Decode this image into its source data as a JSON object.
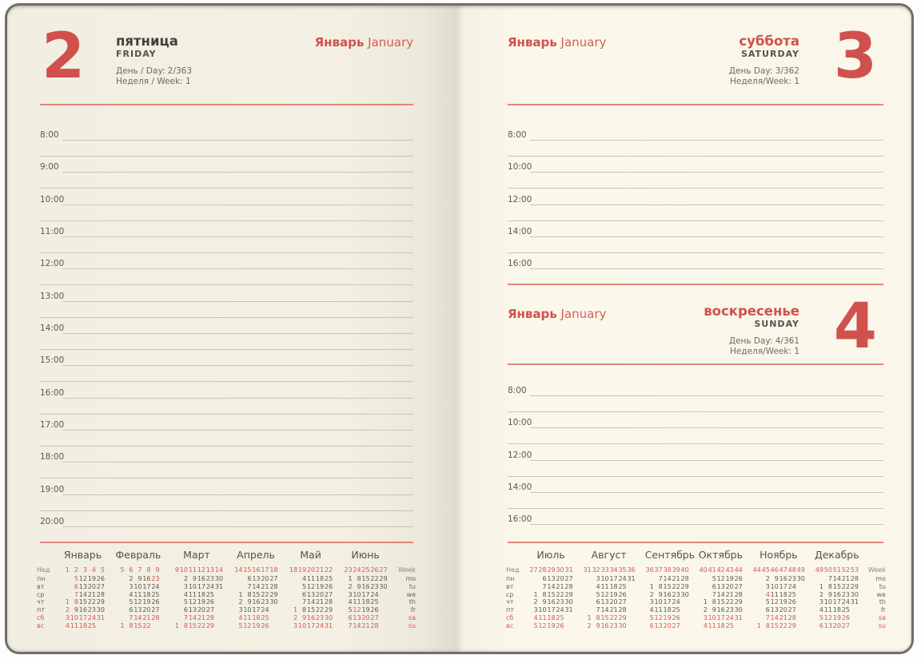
{
  "accent_red": "#d0514c",
  "left_page": {
    "day_number": "2",
    "day_name_ru": "пятница",
    "day_name_en": "FRIDAY",
    "day_counter": "День / Day: 2/363",
    "week_counter": "Неделя / Week: 1",
    "month_ru": "Январь",
    "month_en": "January",
    "hours": [
      "8:00",
      "9:00",
      "10:00",
      "11:00",
      "12:00",
      "13:00",
      "14:00",
      "15:00",
      "16:00",
      "17:00",
      "18:00",
      "19:00",
      "20:00"
    ]
  },
  "right_page": {
    "top_section": {
      "day_number": "3",
      "day_name_ru": "суббота",
      "day_name_en": "SATURDAY",
      "day_counter": "День Day: 3/362",
      "week_counter": "Неделя/Week: 1",
      "month_ru": "Январь",
      "month_en": "January",
      "hours": [
        "8:00",
        "10:00",
        "12:00",
        "14:00",
        "16:00"
      ]
    },
    "bottom_section": {
      "day_number": "4",
      "day_name_ru": "воскресенье",
      "day_name_en": "SUNDAY",
      "day_counter": "День Day: 4/361",
      "week_counter": "Неделя/Week: 1",
      "month_ru": "Январь",
      "month_en": "January",
      "hours": [
        "8:00",
        "10:00",
        "12:00",
        "14:00",
        "16:00"
      ]
    }
  },
  "calendar": {
    "week_label_ru": "Нед",
    "week_label_en": "Week",
    "weekday_labels_ru": [
      "пн",
      "вт",
      "ср",
      "чт",
      "пт",
      "сб",
      "вс"
    ],
    "weekday_labels_en": [
      "mo",
      "tu",
      "we",
      "th",
      "fr",
      "sa",
      "su"
    ],
    "left_months": [
      {
        "name": "Январь",
        "weeks": [
          "1",
          "2",
          "3",
          "4",
          "5"
        ],
        "rows": [
          [
            "",
            "!5",
            "12",
            "19",
            "26"
          ],
          [
            "",
            "!6",
            "13",
            "20",
            "27"
          ],
          [
            "",
            "!7",
            "14",
            "21",
            "28"
          ],
          [
            "!1",
            "!8",
            "15",
            "22",
            "29"
          ],
          [
            "!2",
            "9",
            "16",
            "23",
            "30"
          ],
          [
            "3",
            "10",
            "17",
            "24",
            "31"
          ],
          [
            "4",
            "11",
            "18",
            "25",
            ""
          ]
        ]
      },
      {
        "name": "Февраль",
        "weeks": [
          "5",
          "6",
          "7",
          "8",
          "9"
        ],
        "rows": [
          [
            "",
            "2",
            "9",
            "16",
            "!23"
          ],
          [
            "",
            "3",
            "10",
            "17",
            "24"
          ],
          [
            "",
            "4",
            "11",
            "18",
            "25"
          ],
          [
            "",
            "5",
            "12",
            "19",
            "26"
          ],
          [
            "",
            "6",
            "13",
            "20",
            "27"
          ],
          [
            "",
            "7",
            "14",
            "21",
            "28"
          ],
          [
            "1",
            "8",
            "15",
            "22",
            ""
          ]
        ]
      },
      {
        "name": "Март",
        "weeks": [
          "9",
          "10",
          "11",
          "12",
          "13",
          "14"
        ],
        "rows": [
          [
            "",
            "2",
            "9",
            "16",
            "23",
            "30"
          ],
          [
            "",
            "3",
            "10",
            "17",
            "24",
            "31"
          ],
          [
            "",
            "4",
            "11",
            "18",
            "25",
            ""
          ],
          [
            "",
            "5",
            "12",
            "19",
            "26",
            ""
          ],
          [
            "",
            "6",
            "13",
            "20",
            "27",
            ""
          ],
          [
            "",
            "7",
            "14",
            "21",
            "28",
            ""
          ],
          [
            "1",
            "8",
            "15",
            "22",
            "29",
            ""
          ]
        ]
      },
      {
        "name": "Апрель",
        "weeks": [
          "14",
          "15",
          "16",
          "17",
          "18"
        ],
        "rows": [
          [
            "",
            "6",
            "13",
            "20",
            "27"
          ],
          [
            "",
            "7",
            "14",
            "21",
            "28"
          ],
          [
            "1",
            "8",
            "15",
            "22",
            "29"
          ],
          [
            "2",
            "9",
            "16",
            "23",
            "30"
          ],
          [
            "3",
            "10",
            "17",
            "24",
            ""
          ],
          [
            "4",
            "11",
            "18",
            "25",
            ""
          ],
          [
            "5",
            "12",
            "19",
            "26",
            ""
          ]
        ]
      },
      {
        "name": "Май",
        "weeks": [
          "18",
          "19",
          "20",
          "21",
          "22"
        ],
        "rows": [
          [
            "",
            "4",
            "11",
            "18",
            "25"
          ],
          [
            "",
            "5",
            "12",
            "19",
            "26"
          ],
          [
            "",
            "6",
            "13",
            "20",
            "27"
          ],
          [
            "",
            "7",
            "14",
            "21",
            "28"
          ],
          [
            "!1",
            "8",
            "15",
            "22",
            "29"
          ],
          [
            "2",
            "9",
            "16",
            "23",
            "30"
          ],
          [
            "3",
            "10",
            "17",
            "24",
            "31"
          ]
        ]
      },
      {
        "name": "Июнь",
        "weeks": [
          "23",
          "24",
          "25",
          "26",
          "27"
        ],
        "rows": [
          [
            "1",
            "8",
            "15",
            "22",
            "29"
          ],
          [
            "2",
            "9",
            "16",
            "23",
            "30"
          ],
          [
            "3",
            "10",
            "17",
            "24",
            ""
          ],
          [
            "4",
            "11",
            "18",
            "25",
            ""
          ],
          [
            "5",
            "!12",
            "19",
            "26",
            ""
          ],
          [
            "6",
            "13",
            "20",
            "27",
            ""
          ],
          [
            "7",
            "14",
            "21",
            "28",
            ""
          ]
        ]
      }
    ],
    "right_months": [
      {
        "name": "Июль",
        "weeks": [
          "27",
          "28",
          "29",
          "30",
          "31"
        ],
        "rows": [
          [
            "",
            "6",
            "13",
            "20",
            "27"
          ],
          [
            "",
            "7",
            "14",
            "21",
            "28"
          ],
          [
            "1",
            "8",
            "15",
            "22",
            "29"
          ],
          [
            "2",
            "9",
            "16",
            "23",
            "30"
          ],
          [
            "3",
            "10",
            "17",
            "24",
            "31"
          ],
          [
            "4",
            "11",
            "18",
            "25",
            ""
          ],
          [
            "5",
            "12",
            "19",
            "26",
            ""
          ]
        ]
      },
      {
        "name": "Август",
        "weeks": [
          "31",
          "32",
          "33",
          "34",
          "35",
          "36"
        ],
        "rows": [
          [
            "",
            "3",
            "10",
            "17",
            "24",
            "31"
          ],
          [
            "",
            "4",
            "11",
            "18",
            "25",
            ""
          ],
          [
            "",
            "5",
            "12",
            "19",
            "26",
            ""
          ],
          [
            "",
            "6",
            "13",
            "20",
            "27",
            ""
          ],
          [
            "",
            "7",
            "14",
            "21",
            "28",
            ""
          ],
          [
            "1",
            "8",
            "15",
            "22",
            "29",
            ""
          ],
          [
            "2",
            "9",
            "16",
            "23",
            "30",
            ""
          ]
        ]
      },
      {
        "name": "Сентябрь",
        "weeks": [
          "36",
          "37",
          "38",
          "39",
          "40"
        ],
        "rows": [
          [
            "",
            "7",
            "14",
            "21",
            "28"
          ],
          [
            "1",
            "8",
            "15",
            "22",
            "29"
          ],
          [
            "2",
            "9",
            "16",
            "23",
            "30"
          ],
          [
            "3",
            "10",
            "17",
            "24",
            ""
          ],
          [
            "4",
            "11",
            "18",
            "25",
            ""
          ],
          [
            "5",
            "12",
            "19",
            "26",
            ""
          ],
          [
            "6",
            "13",
            "20",
            "27",
            ""
          ]
        ]
      },
      {
        "name": "Октябрь",
        "weeks": [
          "40",
          "41",
          "42",
          "43",
          "44"
        ],
        "rows": [
          [
            "",
            "5",
            "12",
            "19",
            "26"
          ],
          [
            "",
            "6",
            "13",
            "20",
            "27"
          ],
          [
            "",
            "7",
            "14",
            "21",
            "28"
          ],
          [
            "1",
            "8",
            "15",
            "22",
            "29"
          ],
          [
            "2",
            "9",
            "16",
            "23",
            "30"
          ],
          [
            "3",
            "10",
            "17",
            "24",
            "31"
          ],
          [
            "4",
            "11",
            "18",
            "25",
            ""
          ]
        ]
      },
      {
        "name": "Ноябрь",
        "weeks": [
          "44",
          "45",
          "46",
          "47",
          "48",
          "49"
        ],
        "rows": [
          [
            "",
            "2",
            "9",
            "16",
            "23",
            "30"
          ],
          [
            "",
            "3",
            "10",
            "17",
            "24",
            ""
          ],
          [
            "",
            "!4",
            "11",
            "18",
            "25",
            ""
          ],
          [
            "",
            "5",
            "12",
            "19",
            "26",
            ""
          ],
          [
            "",
            "6",
            "13",
            "20",
            "27",
            ""
          ],
          [
            "",
            "7",
            "14",
            "21",
            "28",
            ""
          ],
          [
            "1",
            "8",
            "15",
            "22",
            "29",
            ""
          ]
        ]
      },
      {
        "name": "Декабрь",
        "weeks": [
          "49",
          "50",
          "51",
          "52",
          "53"
        ],
        "rows": [
          [
            "",
            "7",
            "14",
            "21",
            "28"
          ],
          [
            "1",
            "8",
            "15",
            "22",
            "29"
          ],
          [
            "2",
            "9",
            "16",
            "23",
            "30"
          ],
          [
            "3",
            "10",
            "17",
            "24",
            "31"
          ],
          [
            "4",
            "11",
            "18",
            "25",
            ""
          ],
          [
            "5",
            "12",
            "19",
            "26",
            ""
          ],
          [
            "6",
            "13",
            "20",
            "27",
            ""
          ]
        ]
      }
    ]
  }
}
